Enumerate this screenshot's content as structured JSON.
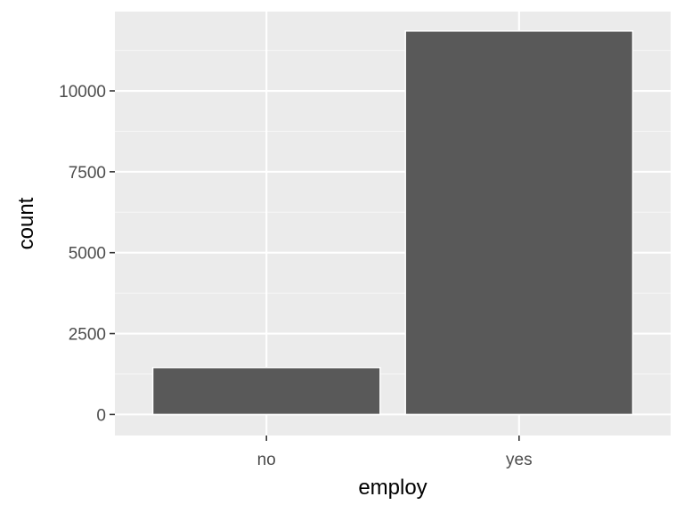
{
  "chart_data": {
    "type": "bar",
    "title": "",
    "xlabel": "employ",
    "ylabel": "count",
    "categories": [
      "no",
      "yes"
    ],
    "values": [
      1450,
      11850
    ],
    "ylim": [
      -650,
      12450
    ],
    "y_ticks": [
      0,
      2500,
      5000,
      7500,
      10000
    ],
    "y_tick_labels": [
      "0",
      "2500",
      "5000",
      "7500",
      "10000"
    ],
    "grid": true,
    "legend": "none",
    "colors": {
      "panel_background": "#ebebeb",
      "grid_major": "#ffffff",
      "grid_minor": "#f5f5f5",
      "bar_fill": "#595959",
      "bar_outline": "#ffffff",
      "tick_text": "#4d4d4d",
      "tick_mark": "#333333"
    }
  }
}
